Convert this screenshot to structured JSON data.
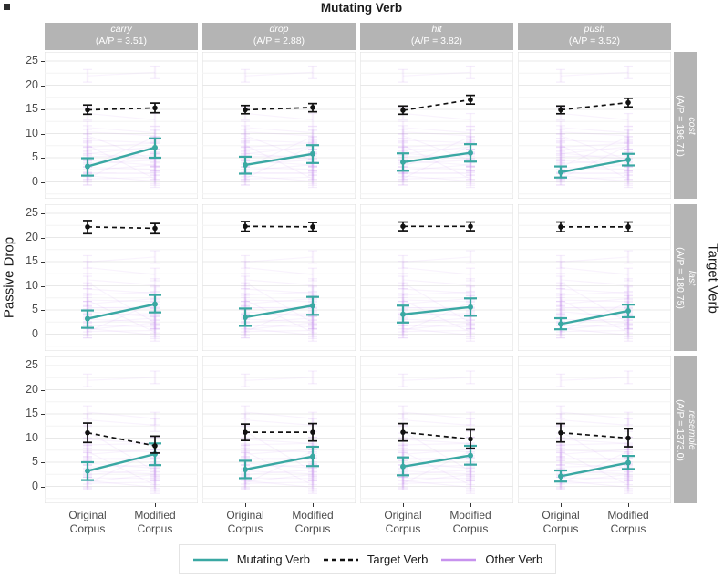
{
  "title": "Mutating Verb",
  "y_axis_label": "Passive Drop",
  "right_axis_label": "Target Verb",
  "legend": {
    "items": [
      {
        "label": "Mutating Verb",
        "line": "solid",
        "color": "#3aa8a3"
      },
      {
        "label": "Target Verb",
        "line": "dashed",
        "color": "#111111"
      },
      {
        "label": "Other Verb",
        "line": "solid",
        "color": "#c792ee"
      }
    ]
  },
  "colors": {
    "mutating": "#3aa8a3",
    "target": "#111111",
    "other": "#c792ee",
    "strip_bg": "#b4b4b4",
    "grid_major": "#e8e8e8",
    "grid_minor": "#f4f4f4",
    "panel_border": "#dedede"
  },
  "chart_data": {
    "type": "line",
    "x_categories": [
      "Original Corpus",
      "Modified Corpus"
    ],
    "y_ticks": [
      0,
      5,
      10,
      15,
      20,
      25
    ],
    "ylim": [
      -3.5,
      26.9
    ],
    "grid": true,
    "legend_position": "bottom",
    "columns": [
      {
        "verb": "carry",
        "ap": "(A/P = 3.51)"
      },
      {
        "verb": "drop",
        "ap": "(A/P = 2.88)"
      },
      {
        "verb": "hit",
        "ap": "(A/P = 3.82)"
      },
      {
        "verb": "push",
        "ap": "(A/P = 3.52)"
      }
    ],
    "rows": [
      {
        "verb": "cost",
        "ap": "(A/P = 196.71)"
      },
      {
        "verb": "last",
        "ap": "(A/P = 180.75)"
      },
      {
        "verb": "resemble",
        "ap": "(A/P = 1373.0)"
      }
    ],
    "panels": [
      {
        "row": "cost",
        "col": "carry",
        "mutating": {
          "y": [
            3.2,
            7.1
          ],
          "err": [
            [
              1.3,
              4.9
            ],
            [
              5.0,
              9.0
            ]
          ]
        },
        "target": {
          "y": [
            14.9,
            15.3
          ],
          "err": [
            [
              14.0,
              15.9
            ],
            [
              14.3,
              16.3
            ]
          ]
        }
      },
      {
        "row": "cost",
        "col": "drop",
        "mutating": {
          "y": [
            3.5,
            5.8
          ],
          "err": [
            [
              1.7,
              5.2
            ],
            [
              3.9,
              7.6
            ]
          ]
        },
        "target": {
          "y": [
            14.9,
            15.4
          ],
          "err": [
            [
              14.1,
              15.8
            ],
            [
              14.5,
              16.2
            ]
          ]
        }
      },
      {
        "row": "cost",
        "col": "hit",
        "mutating": {
          "y": [
            4.1,
            6.0
          ],
          "err": [
            [
              2.3,
              5.9
            ],
            [
              4.2,
              7.8
            ]
          ]
        },
        "target": {
          "y": [
            14.8,
            17.0
          ],
          "err": [
            [
              14.0,
              15.7
            ],
            [
              16.1,
              17.9
            ]
          ]
        }
      },
      {
        "row": "cost",
        "col": "push",
        "mutating": {
          "y": [
            2.0,
            4.6
          ],
          "err": [
            [
              0.9,
              3.2
            ],
            [
              3.4,
              5.8
            ]
          ]
        },
        "target": {
          "y": [
            14.9,
            16.4
          ],
          "err": [
            [
              14.1,
              15.7
            ],
            [
              15.5,
              17.3
            ]
          ]
        }
      },
      {
        "row": "last",
        "col": "carry",
        "mutating": {
          "y": [
            3.2,
            6.2
          ],
          "err": [
            [
              1.3,
              4.9
            ],
            [
              4.5,
              8.1
            ]
          ]
        },
        "target": {
          "y": [
            22.2,
            21.9
          ],
          "err": [
            [
              20.8,
              23.5
            ],
            [
              20.8,
              22.9
            ]
          ]
        }
      },
      {
        "row": "last",
        "col": "drop",
        "mutating": {
          "y": [
            3.5,
            5.9
          ],
          "err": [
            [
              1.7,
              5.3
            ],
            [
              4.0,
              7.7
            ]
          ]
        },
        "target": {
          "y": [
            22.3,
            22.2
          ],
          "err": [
            [
              21.3,
              23.3
            ],
            [
              21.3,
              23.1
            ]
          ]
        }
      },
      {
        "row": "last",
        "col": "hit",
        "mutating": {
          "y": [
            4.1,
            5.6
          ],
          "err": [
            [
              2.4,
              5.9
            ],
            [
              3.8,
              7.4
            ]
          ]
        },
        "target": {
          "y": [
            22.3,
            22.3
          ],
          "err": [
            [
              21.4,
              23.2
            ],
            [
              21.4,
              23.2
            ]
          ]
        }
      },
      {
        "row": "last",
        "col": "push",
        "mutating": {
          "y": [
            2.1,
            4.8
          ],
          "err": [
            [
              1.0,
              3.3
            ],
            [
              3.5,
              6.1
            ]
          ]
        },
        "target": {
          "y": [
            22.2,
            22.2
          ],
          "err": [
            [
              21.2,
              23.2
            ],
            [
              21.2,
              23.2
            ]
          ]
        }
      },
      {
        "row": "resemble",
        "col": "carry",
        "mutating": {
          "y": [
            3.2,
            6.7
          ],
          "err": [
            [
              1.3,
              5.0
            ],
            [
              4.4,
              8.9
            ]
          ]
        },
        "target": {
          "y": [
            11.1,
            8.4
          ],
          "err": [
            [
              9.1,
              13.1
            ],
            [
              6.9,
              10.4
            ]
          ]
        }
      },
      {
        "row": "resemble",
        "col": "drop",
        "mutating": {
          "y": [
            3.5,
            6.2
          ],
          "err": [
            [
              1.7,
              5.3
            ],
            [
              4.2,
              8.2
            ]
          ]
        },
        "target": {
          "y": [
            11.2,
            11.2
          ],
          "err": [
            [
              9.5,
              12.9
            ],
            [
              9.4,
              13.0
            ]
          ]
        }
      },
      {
        "row": "resemble",
        "col": "hit",
        "mutating": {
          "y": [
            4.1,
            6.4
          ],
          "err": [
            [
              2.3,
              6.0
            ],
            [
              4.5,
              8.4
            ]
          ]
        },
        "target": {
          "y": [
            11.2,
            9.8
          ],
          "err": [
            [
              9.4,
              13.0
            ],
            [
              7.9,
              11.7
            ]
          ]
        }
      },
      {
        "row": "resemble",
        "col": "push",
        "mutating": {
          "y": [
            2.1,
            4.9
          ],
          "err": [
            [
              1.0,
              3.3
            ],
            [
              3.6,
              6.3
            ]
          ]
        },
        "target": {
          "y": [
            11.1,
            10.0
          ],
          "err": [
            [
              9.2,
              13.0
            ],
            [
              8.2,
              11.9
            ]
          ]
        }
      }
    ],
    "other_verb_by_row": {
      "cost": [
        [
          22.3,
          22.3
        ],
        [
          13.8,
          13.2
        ],
        [
          11.0,
          10.4
        ],
        [
          10.2,
          9.7
        ],
        [
          8.6,
          8.1
        ],
        [
          7.3,
          7.9
        ],
        [
          7.0,
          6.4
        ],
        [
          6.2,
          6.9
        ],
        [
          5.6,
          5.0
        ],
        [
          5.0,
          5.7
        ],
        [
          4.3,
          3.6
        ],
        [
          3.8,
          4.5
        ],
        [
          3.1,
          2.5
        ],
        [
          2.6,
          3.3
        ],
        [
          2.1,
          1.4
        ],
        [
          1.5,
          2.2
        ],
        [
          1.0,
          0.4
        ],
        [
          0.5,
          1.1
        ],
        [
          7.6,
          0.6
        ],
        [
          0.8,
          7.4
        ],
        [
          9.8,
          4.2
        ],
        [
          3.4,
          9.0
        ]
      ],
      "last": [
        [
          15.3,
          15.6
        ],
        [
          13.4,
          12.7
        ],
        [
          11.0,
          10.4
        ],
        [
          9.2,
          8.6
        ],
        [
          8.1,
          8.7
        ],
        [
          7.2,
          6.6
        ],
        [
          6.5,
          7.1
        ],
        [
          5.8,
          5.2
        ],
        [
          5.1,
          5.7
        ],
        [
          4.4,
          3.8
        ],
        [
          3.8,
          4.4
        ],
        [
          3.1,
          2.5
        ],
        [
          2.5,
          3.2
        ],
        [
          2.0,
          1.3
        ],
        [
          1.3,
          2.0
        ],
        [
          0.8,
          0.2
        ],
        [
          0.3,
          1.0
        ],
        [
          6.9,
          0.5
        ],
        [
          0.5,
          6.6
        ],
        [
          10.8,
          2.2
        ]
      ],
      "resemble": [
        [
          22.3,
          22.2
        ],
        [
          15.0,
          14.4
        ],
        [
          13.5,
          12.9
        ],
        [
          9.6,
          9.0
        ],
        [
          8.6,
          8.9
        ],
        [
          7.6,
          7.0
        ],
        [
          6.9,
          7.4
        ],
        [
          6.1,
          5.5
        ],
        [
          5.3,
          5.9
        ],
        [
          4.6,
          4.0
        ],
        [
          3.9,
          4.5
        ],
        [
          3.2,
          2.6
        ],
        [
          2.6,
          3.3
        ],
        [
          2.0,
          1.4
        ],
        [
          1.3,
          2.1
        ],
        [
          0.8,
          0.2
        ],
        [
          0.4,
          1.1
        ],
        [
          7.1,
          0.4
        ],
        [
          0.6,
          7.3
        ],
        [
          11.5,
          3.0
        ]
      ]
    }
  }
}
